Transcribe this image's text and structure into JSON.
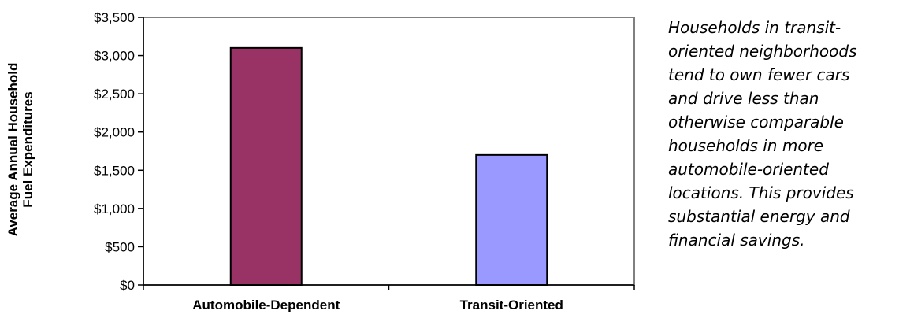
{
  "chart_data": {
    "type": "bar",
    "title": "",
    "xlabel": "",
    "ylabel_lines": [
      "Average Annual Household",
      "Fuel Expenditures"
    ],
    "categories": [
      "Automobile-Dependent",
      "Transit-Oriented"
    ],
    "values": [
      3100,
      1700
    ],
    "ylim": [
      0,
      3500
    ],
    "yticks": [
      "$0",
      "$500",
      "$1,000",
      "$1,500",
      "$2,000",
      "$2,500",
      "$3,000",
      "$3,500"
    ],
    "bar_colors": [
      "#993366",
      "#9999ff"
    ],
    "grid": false,
    "legend": "none"
  },
  "note_lines": [
    "Households in transit-",
    "oriented neighborhoods",
    "tend to own fewer cars",
    "and drive less than",
    "otherwise comparable",
    "households in more",
    "automobile-oriented",
    "locations. This provides",
    "substantial energy and",
    "financial savings."
  ]
}
